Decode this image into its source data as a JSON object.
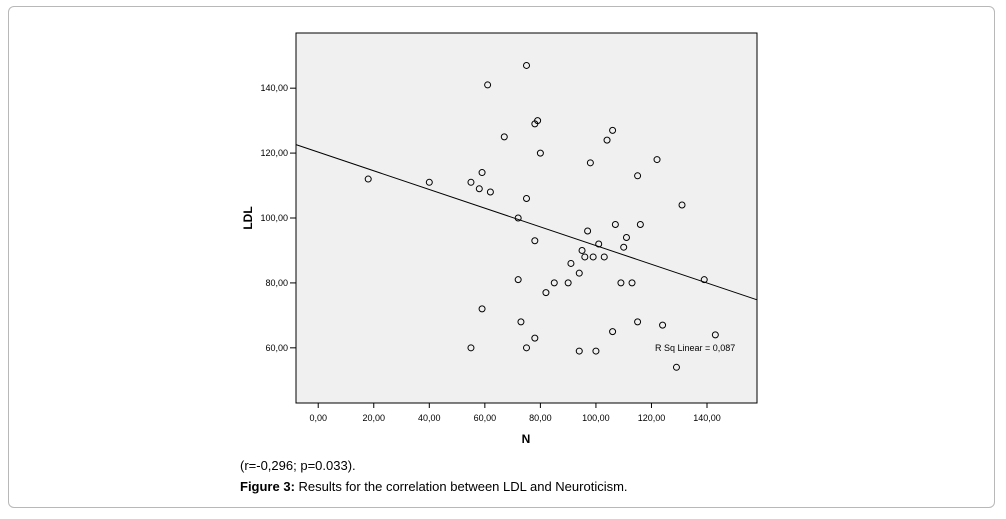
{
  "chart_data": {
    "type": "scatter",
    "title": "",
    "xlabel": "N",
    "ylabel": "LDL",
    "xlim": [
      -8,
      158
    ],
    "ylim": [
      43,
      157
    ],
    "xticks": [
      0,
      20,
      40,
      60,
      80,
      100,
      120,
      140
    ],
    "yticks": [
      60,
      80,
      100,
      120,
      140
    ],
    "xtick_labels": [
      "0,00",
      "20,00",
      "40,00",
      "60,00",
      "80,00",
      "100,00",
      "120,00",
      "140,00"
    ],
    "ytick_labels": [
      "60,00",
      "80,00",
      "100,00",
      "120,00",
      "140,00"
    ],
    "grid": false,
    "points": [
      [
        18,
        112
      ],
      [
        40,
        111
      ],
      [
        55,
        111
      ],
      [
        58,
        109
      ],
      [
        59,
        114
      ],
      [
        62,
        108
      ],
      [
        61,
        141
      ],
      [
        67,
        125
      ],
      [
        75,
        147
      ],
      [
        78,
        129
      ],
      [
        79,
        130
      ],
      [
        80,
        120
      ],
      [
        75,
        106
      ],
      [
        72,
        100
      ],
      [
        78,
        93
      ],
      [
        72,
        81
      ],
      [
        73,
        68
      ],
      [
        59,
        72
      ],
      [
        55,
        60
      ],
      [
        75,
        60
      ],
      [
        78,
        63
      ],
      [
        82,
        77
      ],
      [
        85,
        80
      ],
      [
        90,
        80
      ],
      [
        91,
        86
      ],
      [
        94,
        83
      ],
      [
        95,
        90
      ],
      [
        96,
        88
      ],
      [
        99,
        88
      ],
      [
        97,
        96
      ],
      [
        101,
        92
      ],
      [
        103,
        88
      ],
      [
        98,
        117
      ],
      [
        104,
        124
      ],
      [
        106,
        127
      ],
      [
        107,
        98
      ],
      [
        109,
        80
      ],
      [
        110,
        91
      ],
      [
        111,
        94
      ],
      [
        113,
        80
      ],
      [
        115,
        113
      ],
      [
        116,
        98
      ],
      [
        122,
        118
      ],
      [
        115,
        68
      ],
      [
        106,
        65
      ],
      [
        94,
        59
      ],
      [
        100,
        59
      ],
      [
        124,
        67
      ],
      [
        129,
        54
      ],
      [
        131,
        104
      ],
      [
        139,
        81
      ],
      [
        143,
        64
      ]
    ],
    "fit_line": {
      "intercept": 120.3,
      "slope": -0.288,
      "label": "R Sq Linear = 0,087"
    }
  },
  "caption": {
    "stats": "(r=-0,296; p=0.033).",
    "figure_label": "Figure 3:",
    "figure_text": " Results for the correlation between LDL and Neuroticism."
  }
}
